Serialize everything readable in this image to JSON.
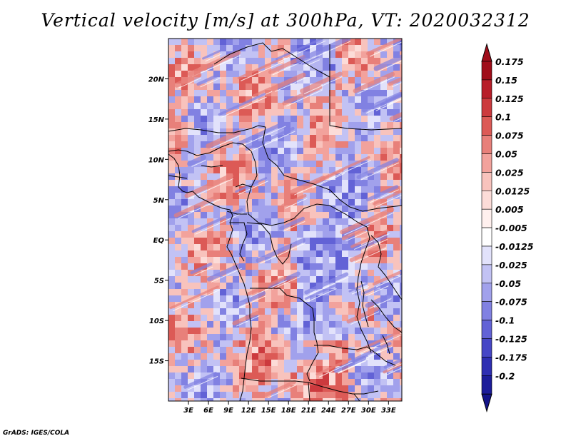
{
  "title": "Vertical velocity [m/s] at 300hPa, VT: 2020032312",
  "footer": "GrADS: IGES/COLA",
  "map": {
    "lat_range": [
      -20,
      25
    ],
    "lon_range": [
      0,
      35
    ],
    "lat_ticks": [
      {
        "value": 20,
        "label": "20N"
      },
      {
        "value": 15,
        "label": "15N"
      },
      {
        "value": 10,
        "label": "10N"
      },
      {
        "value": 5,
        "label": "5N"
      },
      {
        "value": 0,
        "label": "EQ"
      },
      {
        "value": -5,
        "label": "5S"
      },
      {
        "value": -10,
        "label": "10S"
      },
      {
        "value": -15,
        "label": "15S"
      }
    ],
    "lon_ticks": [
      {
        "value": 3,
        "label": "3E"
      },
      {
        "value": 6,
        "label": "6E"
      },
      {
        "value": 9,
        "label": "9E"
      },
      {
        "value": 12,
        "label": "12E"
      },
      {
        "value": 15,
        "label": "15E"
      },
      {
        "value": 18,
        "label": "18E"
      },
      {
        "value": 21,
        "label": "21E"
      },
      {
        "value": 24,
        "label": "24E"
      },
      {
        "value": 27,
        "label": "27E"
      },
      {
        "value": 30,
        "label": "30E"
      },
      {
        "value": 33,
        "label": "33E"
      }
    ]
  },
  "colorbar": {
    "levels": [
      {
        "label": "0.175",
        "color": "#a00d1a"
      },
      {
        "label": "0.15",
        "color": "#b81e2a"
      },
      {
        "label": "0.125",
        "color": "#cc3a3e"
      },
      {
        "label": "0.1",
        "color": "#dc5a56"
      },
      {
        "label": "0.075",
        "color": "#e8807a"
      },
      {
        "label": "0.05",
        "color": "#f2a29c"
      },
      {
        "label": "0.025",
        "color": "#f8c3bd"
      },
      {
        "label": "0.0125",
        "color": "#fcdcd8"
      },
      {
        "label": "0.005",
        "color": "#fff0ee"
      },
      {
        "label": "-0.005",
        "color": "#ffffff"
      },
      {
        "label": "-0.0125",
        "color": "#e2e2fb"
      },
      {
        "label": "-0.025",
        "color": "#c2c2f4"
      },
      {
        "label": "-0.05",
        "color": "#a1a1ec"
      },
      {
        "label": "-0.075",
        "color": "#8181e2"
      },
      {
        "label": "-0.1",
        "color": "#6262d6"
      },
      {
        "label": "-0.125",
        "color": "#4646c6"
      },
      {
        "label": "-0.175",
        "color": "#2e2eb2"
      },
      {
        "label": "-0.2",
        "color": "#1c1c9a"
      }
    ],
    "bottom_color": "#14148a"
  }
}
